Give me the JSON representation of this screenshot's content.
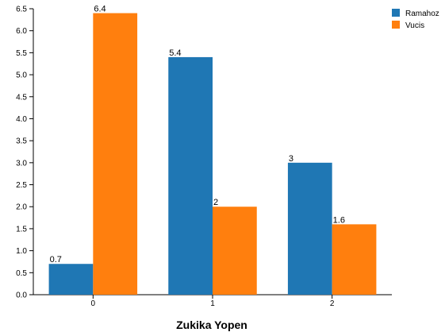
{
  "chart_data": {
    "type": "bar",
    "title": "",
    "xlabel": "Zukika Yopen",
    "ylabel": "",
    "categories": [
      "0",
      "1",
      "2"
    ],
    "series": [
      {
        "name": "Ramahoz",
        "color": "#1f77b4",
        "values": [
          0.7,
          5.4,
          3
        ],
        "labels": [
          "0.7",
          "5.4",
          "3"
        ]
      },
      {
        "name": "Vucis",
        "color": "#ff7f0e",
        "values": [
          6.4,
          2,
          1.6
        ],
        "labels": [
          "6.4",
          "2",
          "1.6"
        ]
      }
    ],
    "ylim": [
      0,
      6.5
    ],
    "yticks": [
      "0.0",
      "0.5",
      "1.0",
      "1.5",
      "2.0",
      "2.5",
      "3.0",
      "3.5",
      "4.0",
      "4.5",
      "5.0",
      "5.5",
      "6.0",
      "6.5"
    ],
    "grid": false,
    "legend_position": "top-right"
  }
}
